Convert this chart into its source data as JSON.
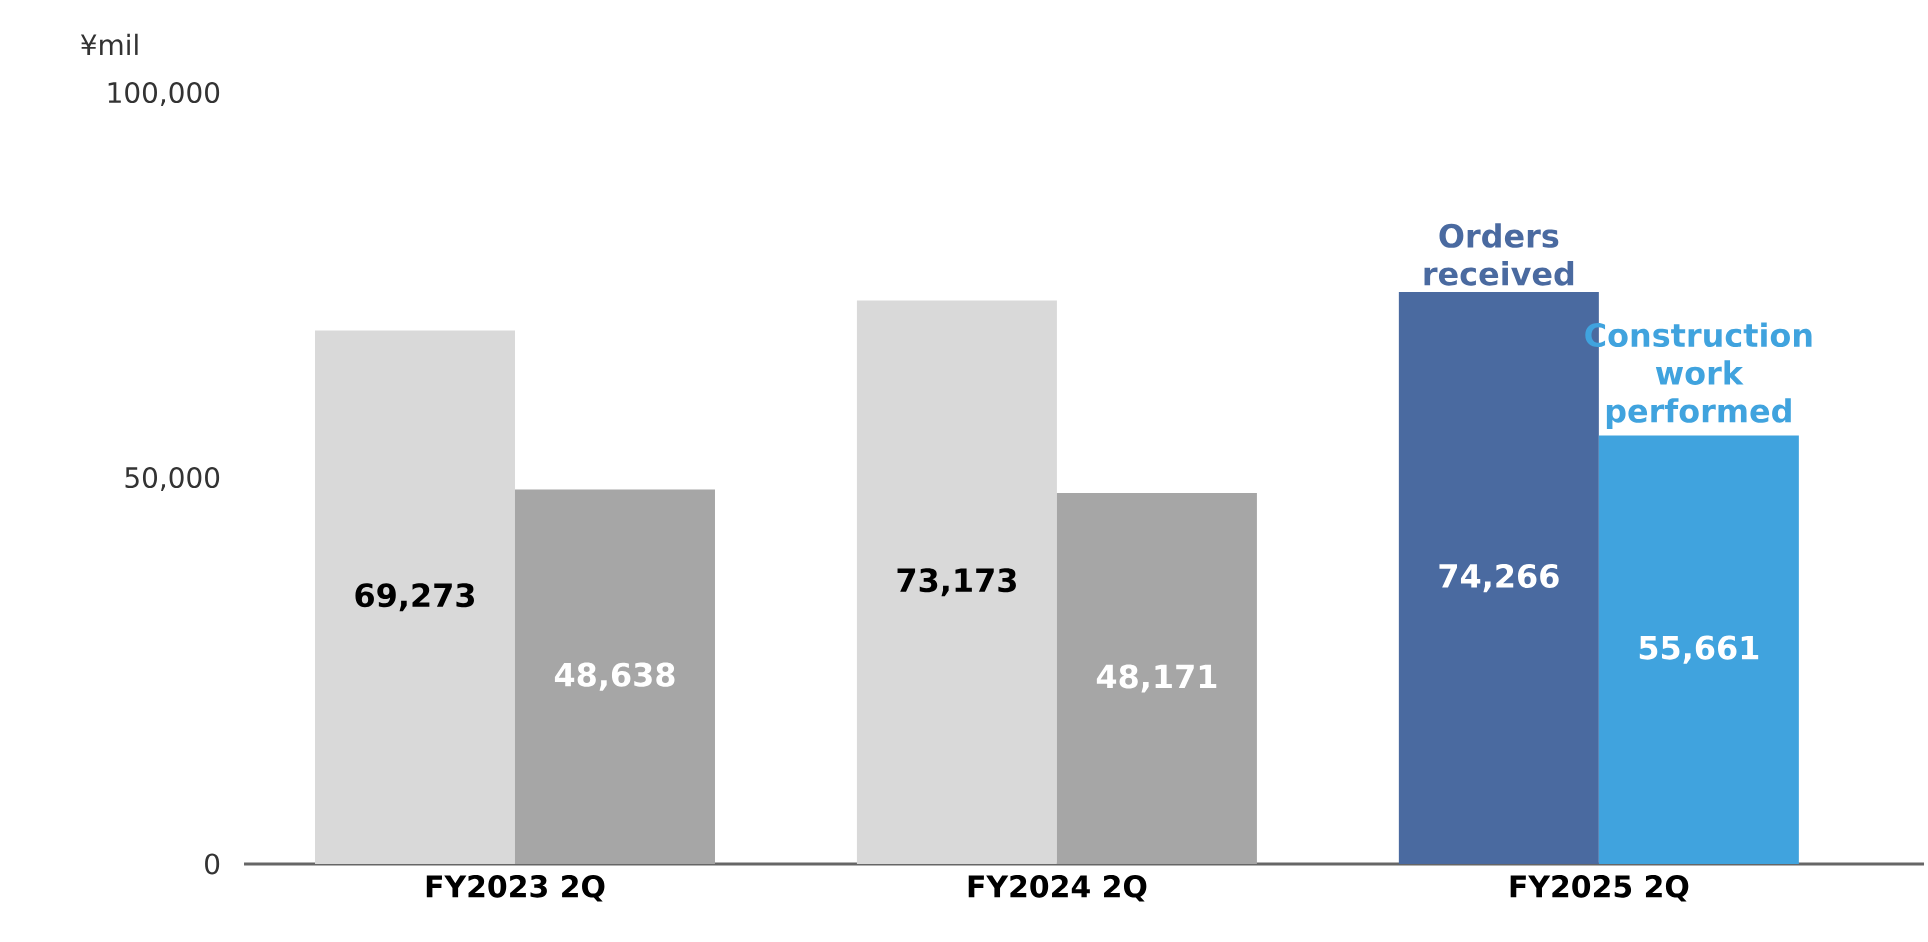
{
  "chart_data": {
    "type": "bar",
    "ylabel": "¥mil",
    "categories": [
      "FY2023 2Q",
      "FY2024 2Q",
      "FY2025 2Q"
    ],
    "series": [
      {
        "name": "Orders received",
        "colors": [
          "#d9d9d9",
          "#d9d9d9",
          "#4a6aa0"
        ],
        "values": [
          69273,
          73173,
          74266
        ],
        "value_labels": [
          "69,273",
          "73,173",
          "74,266"
        ]
      },
      {
        "name": "Construction work performed",
        "colors": [
          "#a6a6a6",
          "#a6a6a6",
          "#40a3de"
        ],
        "values": [
          48638,
          48171,
          55661
        ],
        "value_labels": [
          "48,638",
          "48,171",
          "55,661"
        ]
      }
    ],
    "ylim": [
      0,
      100000
    ],
    "yticks": [
      {
        "value": 0,
        "label": "0"
      },
      {
        "value": 50000,
        "label": "50,000"
      },
      {
        "value": 100000,
        "label": "100,000"
      }
    ],
    "grid": false
  }
}
